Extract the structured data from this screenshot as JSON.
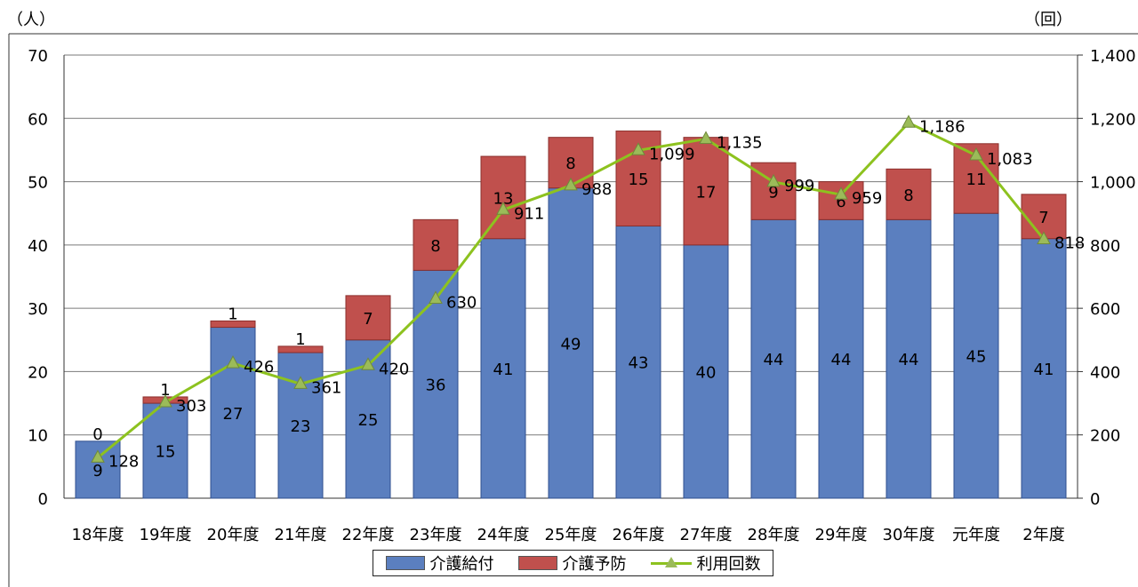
{
  "units": {
    "left": "（人）",
    "right": "（回）"
  },
  "colors": {
    "kaigo_kyufu": "#5b7fbf",
    "kaigo_yobo": "#c0504d",
    "riyo_kaisu": "#8dc21f",
    "marker": "#9bbb59"
  },
  "chart_data": {
    "type": "bar",
    "stacked": true,
    "categories": [
      "18年度",
      "19年度",
      "20年度",
      "21年度",
      "22年度",
      "23年度",
      "24年度",
      "25年度",
      "26年度",
      "27年度",
      "28年度",
      "29年度",
      "30年度",
      "元年度",
      "2年度"
    ],
    "series": [
      {
        "name": "介護給付",
        "type": "bar",
        "axis": "left",
        "values": [
          9,
          15,
          27,
          23,
          25,
          36,
          41,
          49,
          43,
          40,
          44,
          44,
          44,
          45,
          41
        ]
      },
      {
        "name": "介護予防",
        "type": "bar",
        "axis": "left",
        "values": [
          0,
          1,
          1,
          1,
          7,
          8,
          13,
          8,
          15,
          17,
          9,
          6,
          8,
          11,
          7
        ]
      },
      {
        "name": "利用回数",
        "type": "line",
        "axis": "right",
        "values": [
          128,
          303,
          426,
          361,
          420,
          630,
          911,
          988,
          1099,
          1135,
          999,
          959,
          1186,
          1083,
          818
        ]
      }
    ],
    "yaxis_left": {
      "min": 0,
      "max": 70,
      "step": 10,
      "ticks": [
        "0",
        "10",
        "20",
        "30",
        "40",
        "50",
        "60",
        "70"
      ]
    },
    "yaxis_right": {
      "min": 0,
      "max": 1400,
      "step": 200,
      "ticks": [
        "0",
        "200",
        "400",
        "600",
        "800",
        "1,000",
        "1,200",
        "1,400"
      ]
    },
    "line_labels": [
      "128",
      "303",
      "426",
      "361",
      "420",
      "630",
      "911",
      "988",
      "1,099",
      "1,135",
      "999",
      "959",
      "1,186",
      "1,083",
      "818"
    ],
    "grid": true,
    "legend_position": "bottom"
  }
}
